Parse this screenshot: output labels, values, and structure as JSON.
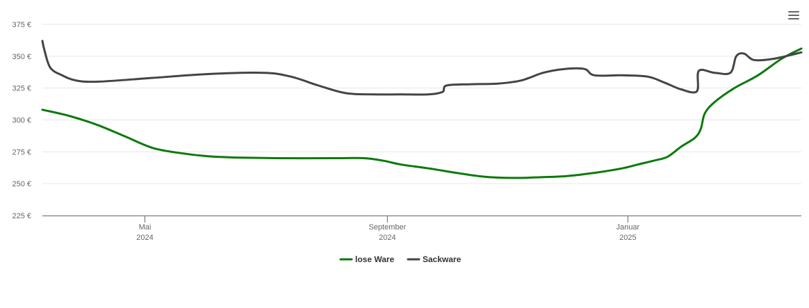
{
  "menu": {
    "icon": "hamburger-menu-icon"
  },
  "chart_data": {
    "type": "line",
    "title": "",
    "xlabel": "",
    "ylabel": "",
    "ylim": [
      225,
      375
    ],
    "y_ticks": [
      {
        "value": 225,
        "label": "225 €"
      },
      {
        "value": 250,
        "label": "250 €"
      },
      {
        "value": 275,
        "label": "275 €"
      },
      {
        "value": 300,
        "label": "300 €"
      },
      {
        "value": 325,
        "label": "325 €"
      },
      {
        "value": 350,
        "label": "350 €"
      },
      {
        "value": 375,
        "label": "375 €"
      }
    ],
    "xlim": [
      "2024-03-10",
      "2025-03-30"
    ],
    "x_ticks": [
      {
        "date": "2024-05-01",
        "month": "Mai",
        "year": "2024"
      },
      {
        "date": "2024-09-01",
        "month": "September",
        "year": "2024"
      },
      {
        "date": "2025-01-01",
        "month": "Januar",
        "year": "2025"
      }
    ],
    "grid": true,
    "legend_position": "bottom-center",
    "series": [
      {
        "name": "lose Ware",
        "color": "#0a7a0a",
        "points": [
          [
            "2024-03-10",
            308
          ],
          [
            "2024-03-24",
            303
          ],
          [
            "2024-04-07",
            296
          ],
          [
            "2024-04-21",
            287
          ],
          [
            "2024-05-05",
            278
          ],
          [
            "2024-05-19",
            274
          ],
          [
            "2024-06-02",
            271.5
          ],
          [
            "2024-06-16",
            270.5
          ],
          [
            "2024-07-07",
            270
          ],
          [
            "2024-08-04",
            270
          ],
          [
            "2024-08-20",
            270
          ],
          [
            "2024-08-30",
            268
          ],
          [
            "2024-09-08",
            265
          ],
          [
            "2024-09-22",
            262
          ],
          [
            "2024-10-06",
            258.5
          ],
          [
            "2024-10-20",
            255.5
          ],
          [
            "2024-11-03",
            254.5
          ],
          [
            "2024-11-17",
            255
          ],
          [
            "2024-12-01",
            256
          ],
          [
            "2024-12-15",
            258.5
          ],
          [
            "2024-12-29",
            262
          ],
          [
            "2025-01-06",
            265
          ],
          [
            "2025-01-14",
            268
          ],
          [
            "2025-01-21",
            271
          ],
          [
            "2025-01-28",
            279
          ],
          [
            "2025-02-04",
            286
          ],
          [
            "2025-02-07",
            293
          ],
          [
            "2025-02-09",
            305
          ],
          [
            "2025-02-14",
            314
          ],
          [
            "2025-02-24",
            325
          ],
          [
            "2025-03-08",
            335
          ],
          [
            "2025-03-20",
            348
          ],
          [
            "2025-03-30",
            356
          ]
        ]
      },
      {
        "name": "Sackware",
        "color": "#434348",
        "points": [
          [
            "2024-03-10",
            362
          ],
          [
            "2024-03-11",
            355
          ],
          [
            "2024-03-14",
            341
          ],
          [
            "2024-03-20",
            335
          ],
          [
            "2024-03-27",
            331
          ],
          [
            "2024-04-07",
            330
          ],
          [
            "2024-05-05",
            333
          ],
          [
            "2024-06-02",
            336
          ],
          [
            "2024-06-30",
            337
          ],
          [
            "2024-07-14",
            334
          ],
          [
            "2024-07-28",
            327
          ],
          [
            "2024-08-11",
            321
          ],
          [
            "2024-08-25",
            320
          ],
          [
            "2024-09-08",
            320
          ],
          [
            "2024-09-22",
            320
          ],
          [
            "2024-09-29",
            322
          ],
          [
            "2024-10-01",
            327
          ],
          [
            "2024-10-13",
            328
          ],
          [
            "2024-10-27",
            328.5
          ],
          [
            "2024-11-08",
            331
          ],
          [
            "2024-11-19",
            337
          ],
          [
            "2024-11-30",
            340
          ],
          [
            "2024-12-10",
            340
          ],
          [
            "2024-12-15",
            335
          ],
          [
            "2024-12-29",
            335
          ],
          [
            "2025-01-11",
            334
          ],
          [
            "2025-01-20",
            329
          ],
          [
            "2025-01-28",
            324
          ],
          [
            "2025-02-05",
            322.5
          ],
          [
            "2025-02-06",
            338.5
          ],
          [
            "2025-02-14",
            337
          ],
          [
            "2025-02-22",
            337
          ],
          [
            "2025-02-25",
            350
          ],
          [
            "2025-03-01",
            352
          ],
          [
            "2025-03-06",
            347
          ],
          [
            "2025-03-16",
            348
          ],
          [
            "2025-03-30",
            353
          ]
        ]
      }
    ]
  }
}
